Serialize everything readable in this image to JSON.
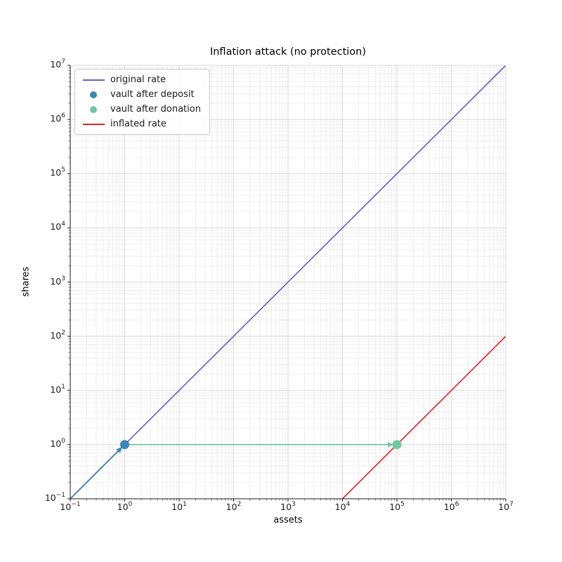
{
  "chart_data": {
    "type": "line",
    "title": "Inflation attack (no protection)",
    "xlabel": "assets",
    "ylabel": "shares",
    "xscale": "log",
    "yscale": "log",
    "xlim": [
      0.1,
      10000000
    ],
    "ylim": [
      0.1,
      10000000
    ],
    "tick_base": "10",
    "x_tick_exponents": [
      -1,
      0,
      1,
      2,
      3,
      4,
      5,
      6,
      7
    ],
    "y_tick_exponents": [
      -1,
      0,
      1,
      2,
      3,
      4,
      5,
      6,
      7
    ],
    "grid": "both",
    "grid_major_color": "#d9d9d9",
    "grid_minor_color": "#ebebeb",
    "spine_color": "#1a1a1a",
    "series": [
      {
        "name": "original rate",
        "kind": "line",
        "color": "#6a5acd",
        "points": [
          [
            0.1,
            0.1
          ],
          [
            10000000,
            10000000
          ]
        ]
      },
      {
        "name": "vault after deposit",
        "kind": "scatter",
        "color": "#3a87b8",
        "points": [
          [
            1,
            1
          ]
        ]
      },
      {
        "name": "vault after donation",
        "kind": "scatter",
        "color": "#72c7a3",
        "points": [
          [
            100000,
            1
          ]
        ]
      },
      {
        "name": "inflated rate",
        "kind": "line",
        "color": "#e82120",
        "points": [
          [
            10000,
            0.1
          ],
          [
            10000000,
            100
          ]
        ]
      }
    ],
    "annotations": [
      {
        "kind": "arrow",
        "color": "#3a87b8",
        "from": [
          0.1,
          0.1
        ],
        "to": [
          1,
          1
        ]
      },
      {
        "kind": "arrow",
        "color": "#72c7a3",
        "from": [
          1,
          1
        ],
        "to": [
          100000,
          1
        ]
      }
    ],
    "legend": {
      "position": "upper left"
    }
  }
}
